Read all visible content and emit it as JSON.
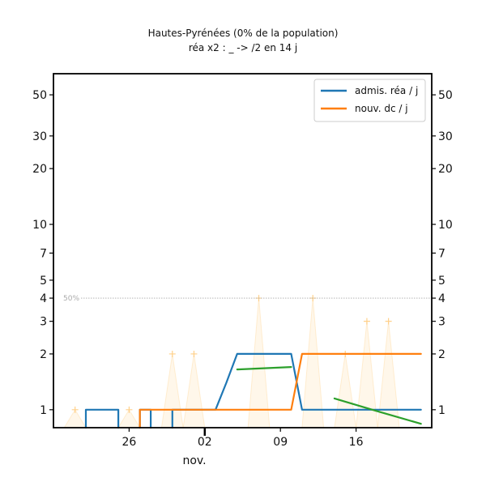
{
  "chart_data": {
    "type": "line",
    "title": "Hautes-Pyrénées (0% de la population)",
    "subtitle": "réa x2 : _ -> /2 en 14 j",
    "xlabel": "nov.",
    "ylabel": "",
    "yscale": "log",
    "ylim": [
      0.8,
      65
    ],
    "y_ticks": [
      1,
      2,
      3,
      4,
      5,
      7,
      10,
      20,
      30,
      50
    ],
    "y_tick_labels": [
      "1",
      "2",
      "3",
      "4",
      "5",
      "7",
      "10",
      "20",
      "30",
      "50"
    ],
    "x_range": [
      "2020-10-19",
      "2020-11-23"
    ],
    "x_ticks": [
      "2020-10-26",
      "2020-11-02",
      "2020-11-09",
      "2020-11-16"
    ],
    "x_tick_labels": [
      "26",
      "02",
      "09",
      "16"
    ],
    "reference_line": {
      "value": 4,
      "label": "50%"
    },
    "legend": {
      "position": "top-right"
    },
    "series": [
      {
        "name": "admis. réa / j",
        "color": "#1f77b4",
        "points": [
          [
            "2020-10-22",
            0.8
          ],
          [
            "2020-10-22",
            1.0
          ],
          [
            "2020-10-25",
            1.0
          ],
          [
            "2020-10-25",
            0.8
          ],
          null,
          [
            "2020-10-27",
            0.8
          ],
          [
            "2020-10-27",
            1.0
          ],
          [
            "2020-10-28",
            1.0
          ],
          [
            "2020-10-28",
            0.8
          ],
          null,
          [
            "2020-10-30",
            0.8
          ],
          [
            "2020-10-30",
            1.0
          ],
          [
            "2020-11-03",
            1.0
          ],
          [
            "2020-11-04",
            1.4
          ],
          [
            "2020-11-05",
            2.0
          ],
          [
            "2020-11-10",
            2.0
          ],
          [
            "2020-11-11",
            1.0
          ],
          [
            "2020-11-22",
            1.0
          ]
        ]
      },
      {
        "name": "nouv. dc / j",
        "color": "#ff7f0e",
        "points": [
          [
            "2020-10-27",
            0.8
          ],
          [
            "2020-10-27",
            1.0
          ],
          [
            "2020-11-10",
            1.0
          ],
          [
            "2020-11-11",
            2.0
          ],
          [
            "2020-11-22",
            2.0
          ]
        ]
      },
      {
        "name": "",
        "color": "#2ca02c",
        "points": [
          [
            "2020-11-05",
            1.65
          ],
          [
            "2020-11-10",
            1.7
          ],
          null,
          [
            "2020-11-14",
            1.15
          ],
          [
            "2020-11-18",
            0.98
          ],
          [
            "2020-11-22",
            0.84
          ]
        ]
      }
    ],
    "background_series": {
      "color": "#ffd08a",
      "peaks": [
        [
          "2020-10-21",
          1
        ],
        [
          "2020-10-26",
          1
        ],
        [
          "2020-10-30",
          2
        ],
        [
          "2020-11-01",
          2
        ],
        [
          "2020-11-07",
          4
        ],
        [
          "2020-11-12",
          4
        ],
        [
          "2020-11-15",
          2
        ],
        [
          "2020-11-17",
          3
        ],
        [
          "2020-11-19",
          3
        ]
      ]
    }
  }
}
